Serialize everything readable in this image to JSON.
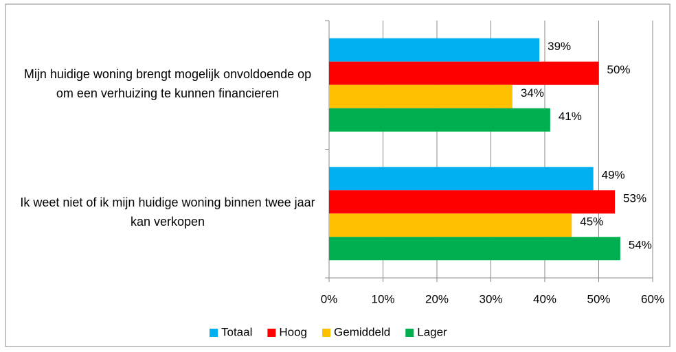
{
  "chart_data": {
    "type": "bar",
    "orientation": "horizontal",
    "categories": [
      "Mijn huidige woning brengt mogelijk onvoldoende op om een verhuizing te kunnen financieren",
      "Ik weet niet of ik mijn huidige woning binnen twee jaar kan verkopen"
    ],
    "series": [
      {
        "name": "Totaal",
        "color": "#00b0f0",
        "values": [
          39,
          49
        ],
        "value_labels": [
          "39%",
          "49%"
        ]
      },
      {
        "name": "Hoog",
        "color": "#ff0000",
        "values": [
          50,
          53
        ],
        "value_labels": [
          "50%",
          "53%"
        ]
      },
      {
        "name": "Gemiddeld",
        "color": "#ffc000",
        "values": [
          34,
          45
        ],
        "value_labels": [
          "34%",
          "45%"
        ]
      },
      {
        "name": "Lager",
        "color": "#00b050",
        "values": [
          41,
          54
        ],
        "value_labels": [
          "41%",
          "54%"
        ]
      }
    ],
    "xlim": [
      0,
      60
    ],
    "xticks": [
      {
        "value": 0,
        "label": "0%"
      },
      {
        "value": 10,
        "label": "10%"
      },
      {
        "value": 20,
        "label": "20%"
      },
      {
        "value": 30,
        "label": "30%"
      },
      {
        "value": 40,
        "label": "40%"
      },
      {
        "value": 50,
        "label": "50%"
      },
      {
        "value": 60,
        "label": "60%"
      }
    ],
    "grid": true,
    "legend": "bottom"
  }
}
